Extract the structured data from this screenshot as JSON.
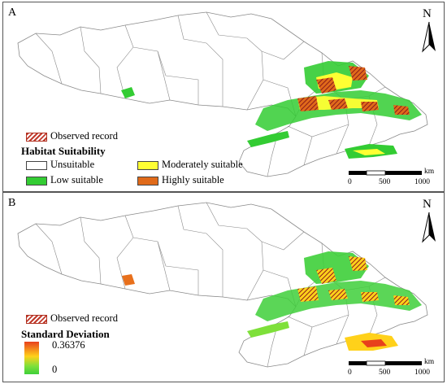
{
  "panels": [
    {
      "letter": "A",
      "north_label": "N",
      "legend": {
        "record_label": "Observed record",
        "title": "Habitat Suitability",
        "classes": [
          {
            "label": "Unsuitable",
            "color": "#ffffff"
          },
          {
            "label": "Moderately suitable",
            "color": "#ffff33"
          },
          {
            "label": "Low suitable",
            "color": "#33cc33"
          },
          {
            "label": "Highly suitable",
            "color": "#e06a1a"
          }
        ]
      },
      "scale": {
        "ticks": [
          "0",
          "500",
          "1000"
        ],
        "unit": "km"
      }
    },
    {
      "letter": "B",
      "north_label": "N",
      "legend": {
        "record_label": "Observed record",
        "title": "Standard Deviation",
        "max_label": "0.36376",
        "min_label": "0"
      },
      "scale": {
        "ticks": [
          "0",
          "500",
          "1000"
        ],
        "unit": "km"
      }
    }
  ],
  "colors": {
    "hatch": "#c0392b",
    "low": "#33cc33",
    "moderate": "#ffff33",
    "high": "#e06a1a",
    "boundary": "#8a8a8a"
  }
}
